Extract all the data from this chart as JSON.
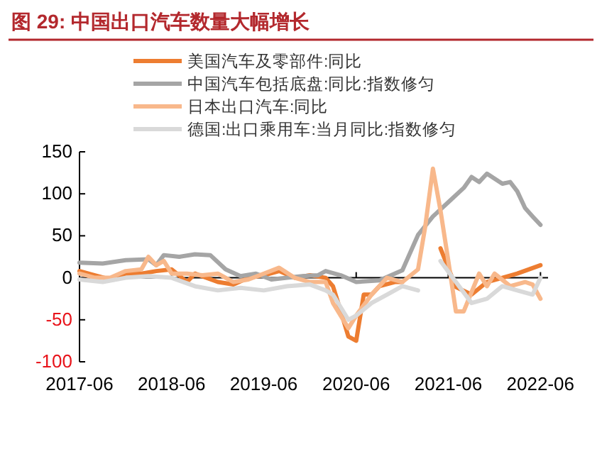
{
  "chart_data": {
    "type": "line",
    "title": "图 29: 中国出口汽车数量大幅增长",
    "xlim": [
      "2017-06",
      "2022-07"
    ],
    "xticks": [
      "2017-06",
      "2018-06",
      "2019-06",
      "2020-06",
      "2021-06",
      "2022-06"
    ],
    "ylim": [
      -100,
      150
    ],
    "yticks": [
      -100,
      -50,
      0,
      50,
      100,
      150
    ],
    "ref_lines": [
      {
        "axis": "y",
        "value": 0
      }
    ],
    "legend": "top",
    "line_style": "solid",
    "marker": "none",
    "series": [
      {
        "name": "美国汽车及零部件:同比",
        "color": "#ed7d31",
        "x": [
          "2017-06",
          "2017-08",
          "2017-10",
          "2017-12",
          "2018-02",
          "2018-04",
          "2018-06",
          "2018-08",
          "2018-09",
          "2018-12",
          "2019-02",
          "2019-04",
          "2019-06",
          "2019-08",
          "2019-10",
          "2019-12",
          "2020-02",
          "2020-03",
          "2020-04",
          "2020-05",
          "2020-06",
          "2020-07",
          "2020-08",
          "2020-09",
          "2020-11",
          "2020-12",
          "2021-02",
          "2021-05",
          "2021-07",
          "2021-09",
          "2021-11",
          "2022-01",
          "2022-03",
          "2022-06"
        ],
        "values": [
          8,
          3,
          -2,
          5,
          5,
          8,
          10,
          -5,
          5,
          -5,
          -8,
          0,
          3,
          8,
          0,
          3,
          0,
          -10,
          -40,
          -70,
          -75,
          -20,
          -20,
          -10,
          -5,
          -5,
          null,
          35,
          -11,
          -20,
          -5,
          0,
          5,
          15
        ]
      },
      {
        "name": "中国汽车包括底盘:同比:指数修匀",
        "color": "#a5a5a5",
        "x": [
          "2017-06",
          "2017-09",
          "2017-12",
          "2018-03",
          "2018-04",
          "2018-05",
          "2018-07",
          "2018-09",
          "2018-11",
          "2019-01",
          "2019-03",
          "2019-05",
          "2019-07",
          "2019-09",
          "2019-11",
          "2020-01",
          "2020-02",
          "2020-04",
          "2020-06",
          "2020-09",
          "2020-12",
          "2021-02",
          "2021-04",
          "2021-06",
          "2021-08",
          "2021-09",
          "2021-10",
          "2021-11",
          "2022-01",
          "2022-02",
          "2022-03",
          "2022-04",
          "2022-05",
          "2022-06"
        ],
        "values": [
          18,
          17,
          21,
          22,
          15,
          27,
          25,
          28,
          27,
          10,
          2,
          5,
          -2,
          0,
          2,
          3,
          8,
          3,
          -5,
          -3,
          9,
          51,
          73,
          90,
          107,
          120,
          114,
          124,
          112,
          114,
          103,
          83,
          73,
          63
        ]
      },
      {
        "name": "日本出口汽车:同比",
        "color": "#f8b88b",
        "x": [
          "2017-06",
          "2017-08",
          "2017-10",
          "2017-12",
          "2018-02",
          "2018-03",
          "2018-04",
          "2018-05",
          "2018-06",
          "2018-08",
          "2018-10",
          "2018-12",
          "2019-02",
          "2019-04",
          "2019-06",
          "2019-08",
          "2019-10",
          "2019-12",
          "2020-02",
          "2020-03",
          "2020-05",
          "2020-06",
          "2020-08",
          "2020-10",
          "2020-12",
          "2021-02",
          "2021-03",
          "2021-04",
          "2021-05",
          "2021-06",
          "2021-07",
          "2021-08",
          "2021-10",
          "2021-11",
          "2021-12",
          "2022-02",
          "2022-04",
          "2022-05",
          "2022-06"
        ],
        "values": [
          5,
          0,
          0,
          8,
          10,
          25,
          15,
          20,
          5,
          5,
          3,
          5,
          -5,
          -2,
          5,
          12,
          0,
          -5,
          -5,
          -30,
          -60,
          -45,
          -20,
          0,
          -5,
          10,
          60,
          130,
          80,
          20,
          -40,
          -40,
          5,
          -10,
          5,
          -10,
          -5,
          -8,
          -25
        ]
      },
      {
        "name": "德国:出口乘用车:当月同比:指数修匀",
        "color": "#d9d9d9",
        "x": [
          "2017-06",
          "2017-09",
          "2017-12",
          "2018-03",
          "2018-06",
          "2018-09",
          "2018-12",
          "2019-03",
          "2019-06",
          "2019-09",
          "2019-12",
          "2020-02",
          "2020-03",
          "2020-05",
          "2020-06",
          "2020-08",
          "2020-10",
          "2020-12",
          "2021-02",
          "2021-04",
          "2021-05",
          "2021-07",
          "2021-09",
          "2021-11",
          "2022-01",
          "2022-03",
          "2022-05",
          "2022-06"
        ],
        "values": [
          -2,
          -5,
          0,
          2,
          0,
          -10,
          -15,
          -12,
          -15,
          -10,
          -8,
          -15,
          -20,
          -50,
          -45,
          -30,
          -20,
          -10,
          -15,
          null,
          20,
          -5,
          -30,
          -25,
          -10,
          -15,
          -20,
          0
        ]
      }
    ]
  }
}
